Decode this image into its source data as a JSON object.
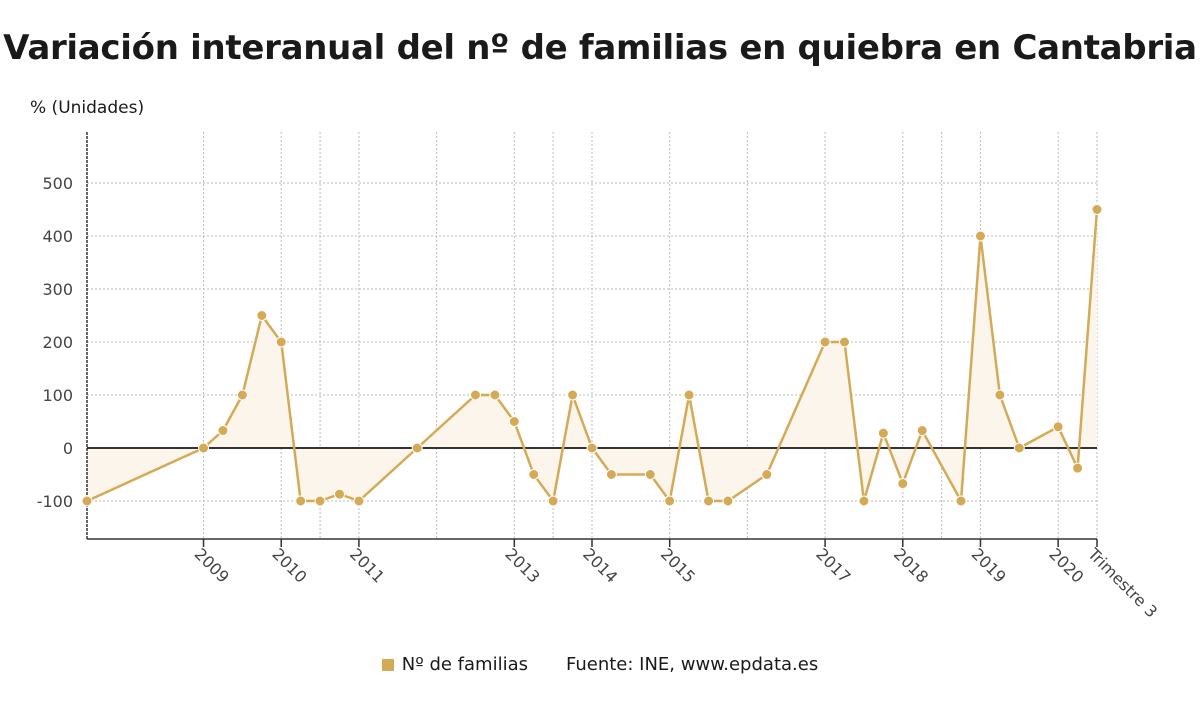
{
  "title": "Variación interanual del nº de familias en quiebra en Cantabria",
  "unit_label": "% (Unidades)",
  "legend": {
    "series_label": "Nº de familias",
    "source": "Fuente: INE, www.epdata.es"
  },
  "colors": {
    "series": "#d4aa57",
    "fill": "#fbf5ec",
    "zero_line": "#333333",
    "grid": "#bbbbbb"
  },
  "chart_data": {
    "type": "area",
    "title": "Variación interanual del nº de familias en quiebra en Cantabria",
    "ylabel": "% (Unidades)",
    "ylim": [
      -170,
      600
    ],
    "yticks": [
      500,
      400,
      300,
      200,
      100,
      0,
      -100
    ],
    "xticks": [
      {
        "label": "2009",
        "x": 6
      },
      {
        "label": "2010",
        "x": 10
      },
      {
        "label": "2011",
        "x": 14
      },
      {
        "label": "2013",
        "x": 22
      },
      {
        "label": "2014",
        "x": 26
      },
      {
        "label": "2015",
        "x": 30
      },
      {
        "label": "2017",
        "x": 38
      },
      {
        "label": "2018",
        "x": 42
      },
      {
        "label": "2019",
        "x": 46
      },
      {
        "label": "2020",
        "x": 50
      },
      {
        "label": "Trimestre 3",
        "x": 52
      }
    ],
    "vgrid_x": [
      6,
      10,
      12,
      14,
      18,
      22,
      24,
      26,
      30,
      34,
      38,
      42,
      44,
      46,
      50,
      52
    ],
    "series": [
      {
        "name": "Nº de familias",
        "points": [
          [
            0,
            -100
          ],
          [
            6,
            0
          ],
          [
            7,
            33
          ],
          [
            8,
            100
          ],
          [
            9,
            250
          ],
          [
            10,
            200
          ],
          [
            11,
            -100
          ],
          [
            12,
            -100
          ],
          [
            13,
            -87
          ],
          [
            14,
            -100
          ],
          [
            17,
            0
          ],
          [
            20,
            100
          ],
          [
            21,
            100
          ],
          [
            22,
            50
          ],
          [
            23,
            -50
          ],
          [
            24,
            -100
          ],
          [
            25,
            100
          ],
          [
            26,
            0
          ],
          [
            27,
            -50
          ],
          [
            29,
            -50
          ],
          [
            30,
            -100
          ],
          [
            31,
            100
          ],
          [
            32,
            -100
          ],
          [
            33,
            -100
          ],
          [
            35,
            -50
          ],
          [
            38,
            200
          ],
          [
            39,
            200
          ],
          [
            40,
            -100
          ],
          [
            41,
            28
          ],
          [
            42,
            -67
          ],
          [
            43,
            33
          ],
          [
            45,
            -100
          ],
          [
            46,
            400
          ],
          [
            47,
            100
          ],
          [
            48,
            0
          ],
          [
            50,
            40
          ],
          [
            51,
            -38
          ],
          [
            52,
            450
          ]
        ]
      }
    ]
  }
}
